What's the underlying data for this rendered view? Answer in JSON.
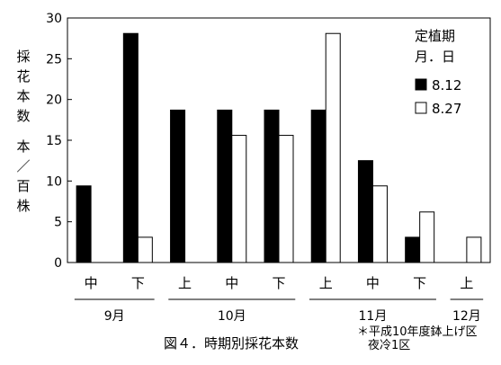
{
  "chart_data": {
    "type": "bar",
    "ylabel_lines": [
      "採",
      "花",
      "本",
      "数"
    ],
    "yunit_lines": [
      "本",
      "／",
      "百",
      "株"
    ],
    "ylim": [
      0,
      30
    ],
    "yticks": [
      0,
      5,
      10,
      15,
      20,
      25,
      30
    ],
    "grid": false,
    "legend_title": [
      "定植期",
      "月．日"
    ],
    "legend_position": "top-right",
    "categories": [
      "中",
      "下",
      "上",
      "中",
      "下",
      "上",
      "中",
      "下",
      "上"
    ],
    "month_groups": [
      {
        "label": "9月",
        "start": 0,
        "end": 1
      },
      {
        "label": "10月",
        "start": 2,
        "end": 4
      },
      {
        "label": "11月",
        "start": 5,
        "end": 7
      },
      {
        "label": "12月",
        "start": 8,
        "end": 8
      }
    ],
    "series": [
      {
        "name": "8.12",
        "color": "#000000",
        "values": [
          9.4,
          28.1,
          18.7,
          18.7,
          18.7,
          18.7,
          12.5,
          3.1,
          0
        ]
      },
      {
        "name": "8.27",
        "color": "#ffffff",
        "values": [
          0,
          3.1,
          0,
          15.6,
          15.6,
          28.1,
          9.4,
          6.2,
          3.1
        ]
      }
    ]
  },
  "caption": "図４．時期別採花本数",
  "footnote": [
    "＊平成10年度鉢上げ区",
    "夜冷1区"
  ]
}
